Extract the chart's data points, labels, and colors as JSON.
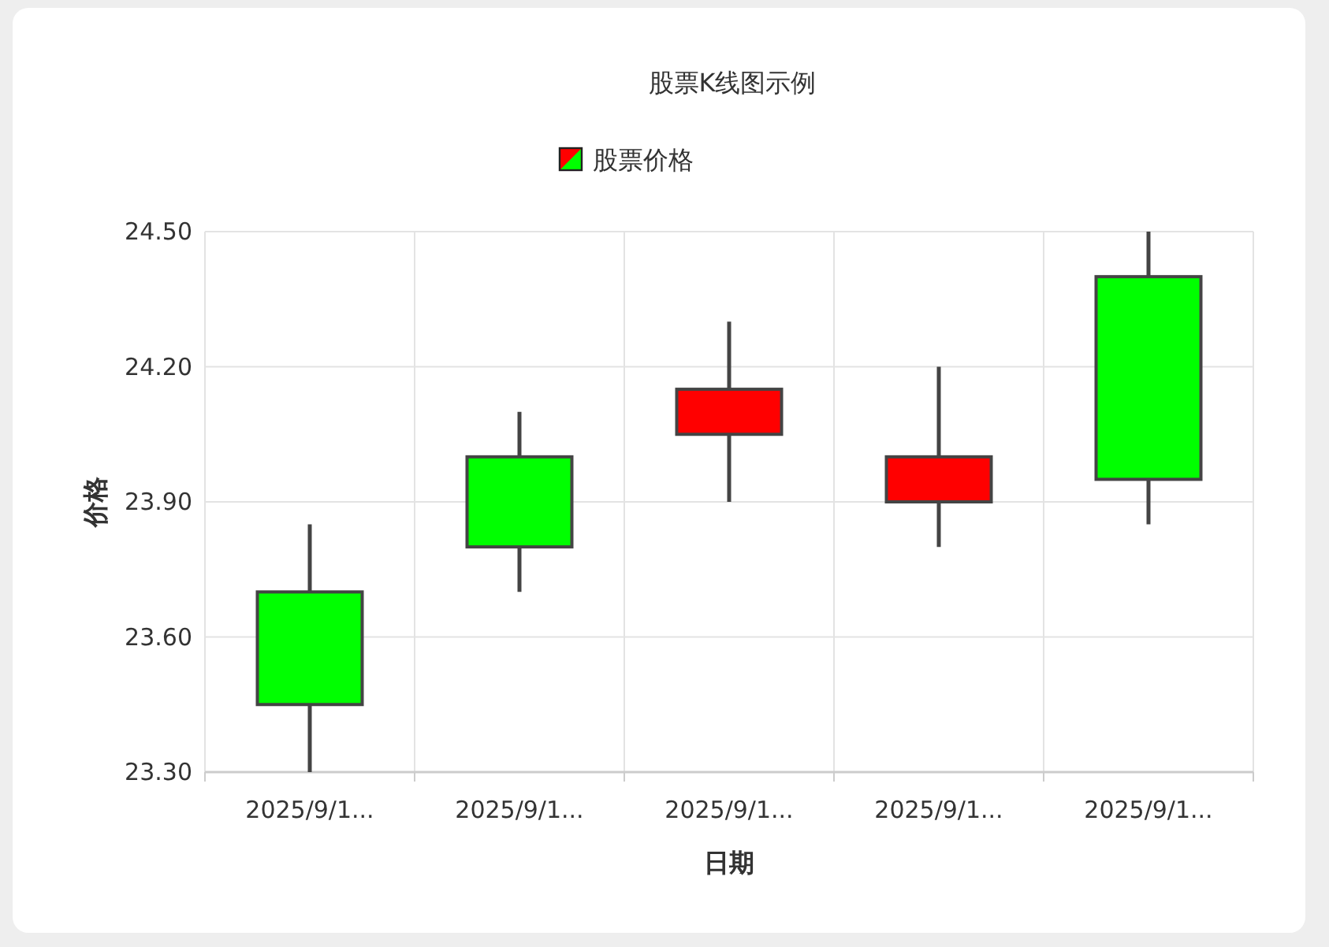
{
  "chart_data": {
    "type": "candlestick",
    "title": "股票K线图示例",
    "xlabel": "日期",
    "ylabel": "价格",
    "categories": [
      "2025/9/1...",
      "2025/9/1...",
      "2025/9/1...",
      "2025/9/1...",
      "2025/9/1..."
    ],
    "series": [
      {
        "name": "股票价格",
        "colors": [
          "#00ff00",
          "#00ff00",
          "#ff0000",
          "#ff0000",
          "#00ff00"
        ],
        "ohlc": [
          [
            23.45,
            23.85,
            23.3,
            23.7
          ],
          [
            23.8,
            24.1,
            23.7,
            24.0
          ],
          [
            24.15,
            24.3,
            23.9,
            24.05
          ],
          [
            24.0,
            24.2,
            23.8,
            23.9
          ],
          [
            23.95,
            24.5,
            23.85,
            24.4
          ]
        ]
      }
    ],
    "ylim": [
      23.3,
      24.5
    ],
    "yticks": [
      {
        "value": 23.3,
        "label": "23.30"
      },
      {
        "value": 23.6,
        "label": "23.60"
      },
      {
        "value": 23.9,
        "label": "23.90"
      },
      {
        "value": 24.2,
        "label": "24.20"
      },
      {
        "value": 24.5,
        "label": "24.50"
      }
    ],
    "grid": true,
    "legend": "top"
  }
}
